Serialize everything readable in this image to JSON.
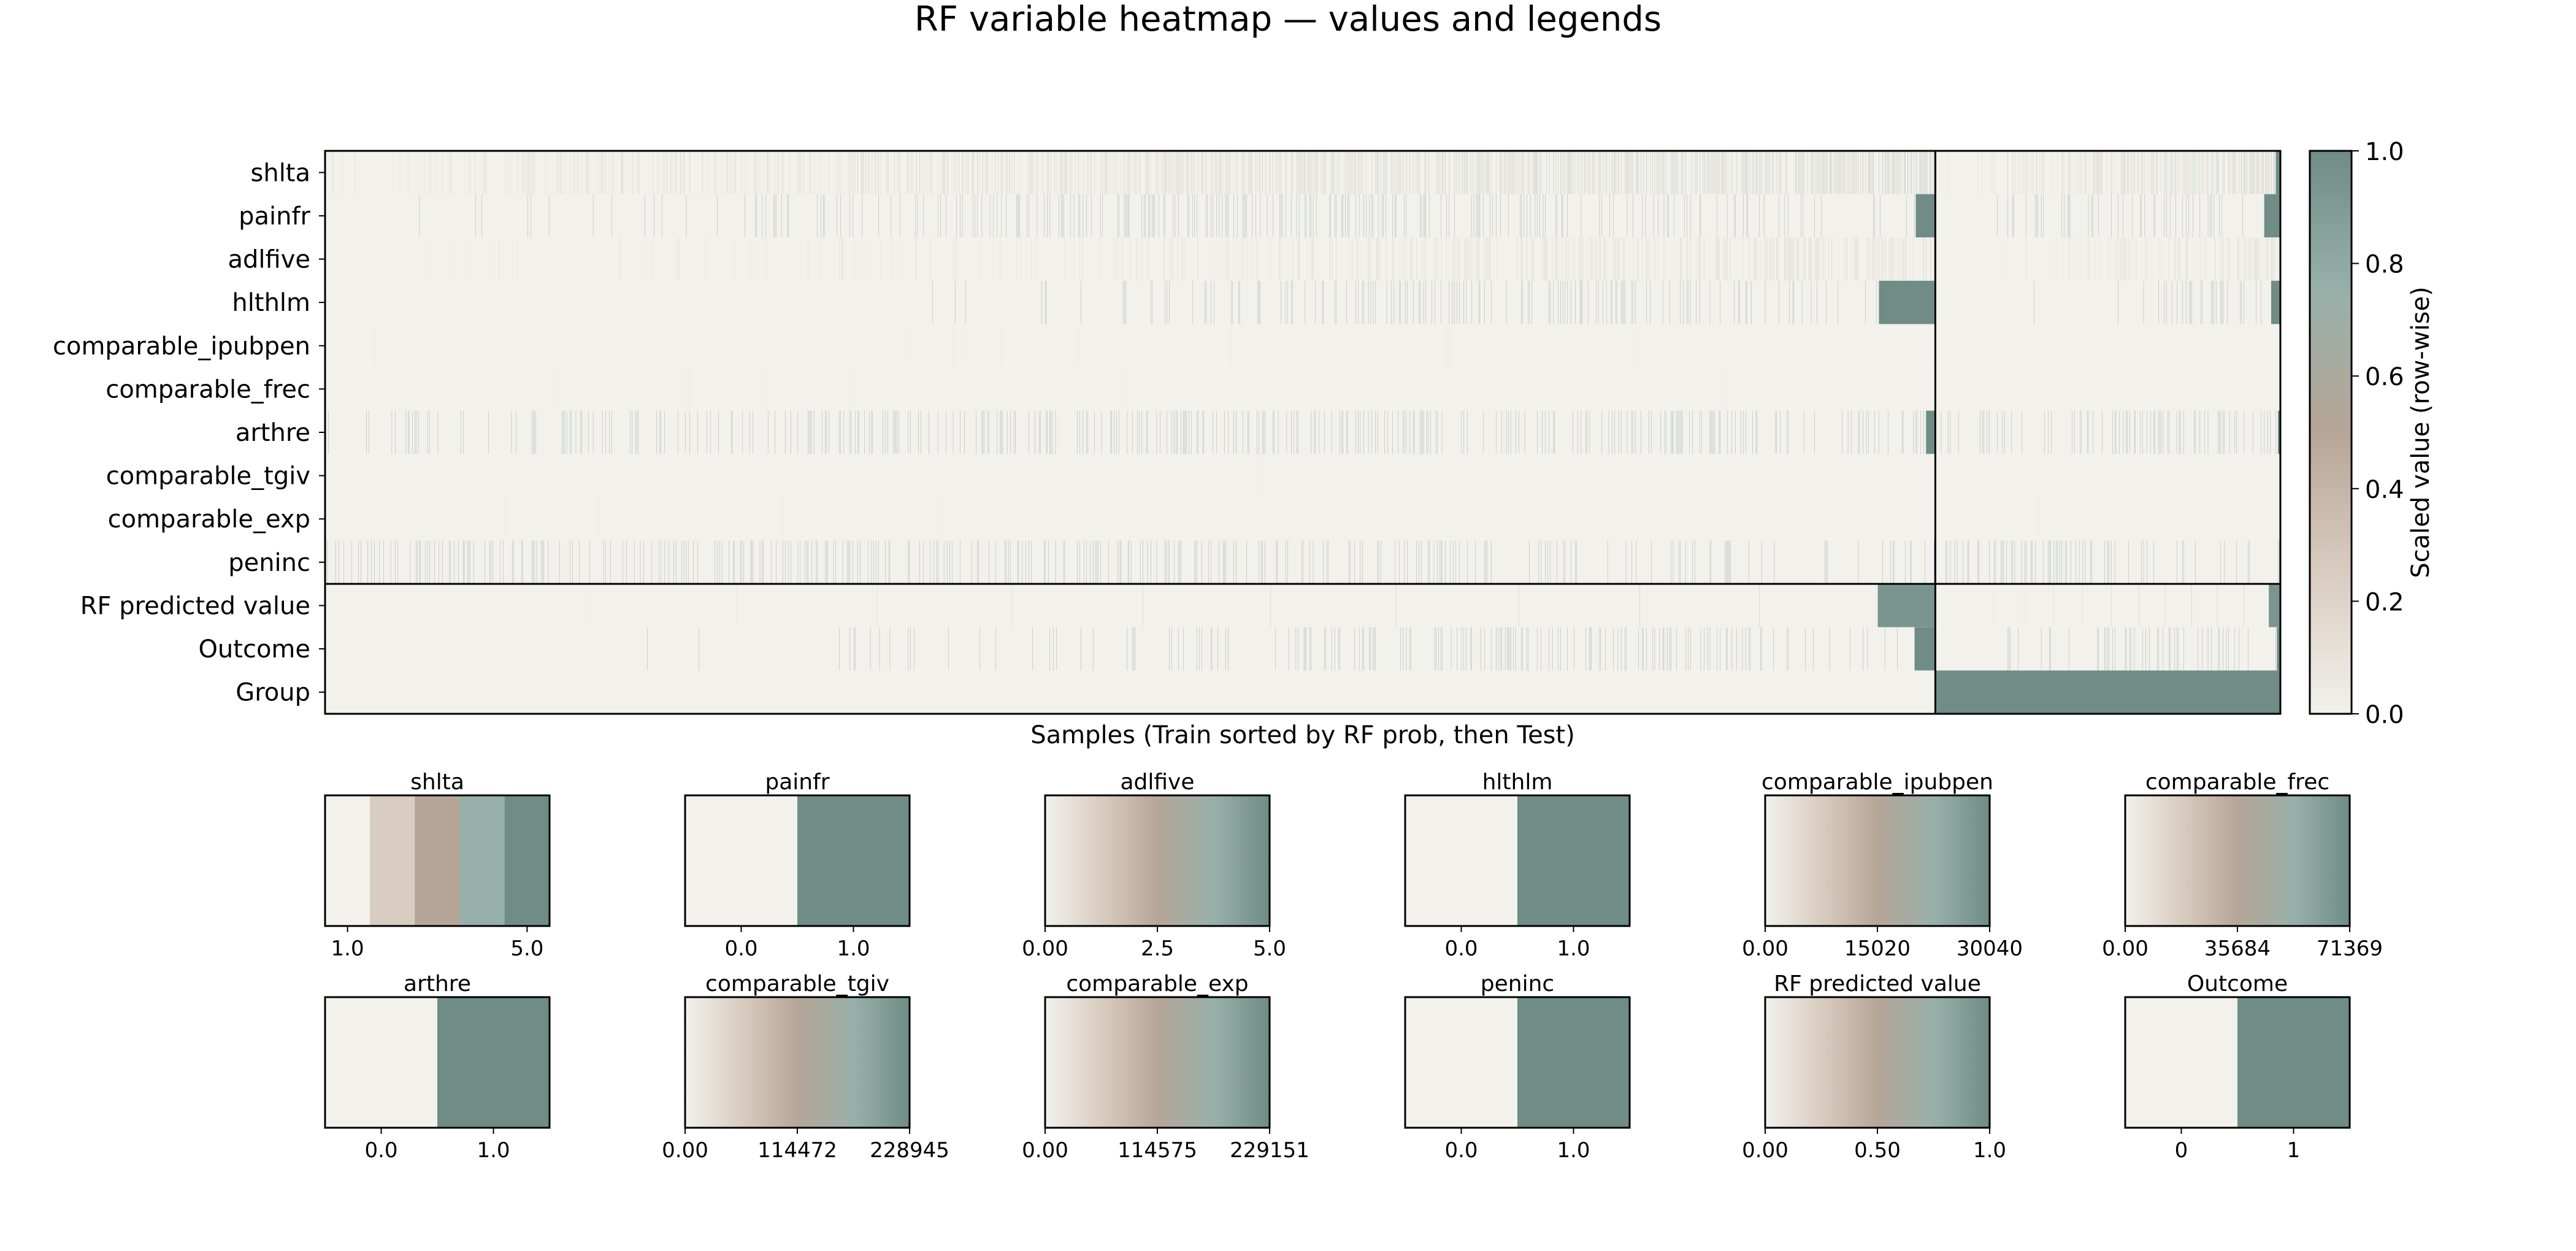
{
  "colors": {
    "colormap": [
      "#f2f1ec",
      "#d9ccc0",
      "#b7a697",
      "#98b0aa",
      "#708c86"
    ],
    "background": "#ffffff",
    "text": "#000000",
    "frame": "#000000"
  },
  "chart_data": {
    "type": "heatmap",
    "title": "RF variable heatmap — values and legends",
    "xlabel": "Samples (Train sorted by RF prob, then Test)",
    "rows": [
      "shlta",
      "painfr",
      "adlfive",
      "hlthlm",
      "comparable_ipubpen",
      "comparable_frec",
      "arthre",
      "comparable_tgiv",
      "comparable_exp",
      "peninc",
      "RF predicted value",
      "Outcome",
      "Group"
    ],
    "n_train": 1400,
    "n_test": 300,
    "colorbar": {
      "label": "Scaled value (row-wise)",
      "range": [
        0.0,
        1.0
      ],
      "ticks": [
        "0.0",
        "0.2",
        "0.4",
        "0.6",
        "0.8",
        "1.0"
      ]
    },
    "legends": [
      {
        "title": "shlta",
        "kind": "discrete",
        "levels": 5,
        "range": [
          0.5,
          5.5
        ],
        "ticks": [
          {
            "v": 1,
            "t": "1.0"
          },
          {
            "v": 5,
            "t": "5.0"
          }
        ]
      },
      {
        "title": "painfr",
        "kind": "discrete",
        "levels": 2,
        "range": [
          -0.5,
          1.5
        ],
        "ticks": [
          {
            "v": 0,
            "t": "0.0"
          },
          {
            "v": 1,
            "t": "1.0"
          }
        ]
      },
      {
        "title": "adlfive",
        "kind": "continuous",
        "range": [
          0,
          5
        ],
        "ticks": [
          {
            "v": 0,
            "t": "0.00"
          },
          {
            "v": 2.5,
            "t": "2.5"
          },
          {
            "v": 5,
            "t": "5.0"
          }
        ]
      },
      {
        "title": "hlthlm",
        "kind": "discrete",
        "levels": 2,
        "range": [
          -0.5,
          1.5
        ],
        "ticks": [
          {
            "v": 0,
            "t": "0.0"
          },
          {
            "v": 1,
            "t": "1.0"
          }
        ]
      },
      {
        "title": "comparable_ipubpen",
        "kind": "continuous",
        "range": [
          0,
          30040
        ],
        "ticks": [
          {
            "v": 0,
            "t": "0.00"
          },
          {
            "v": 15020,
            "t": "15020"
          },
          {
            "v": 30040,
            "t": "30040"
          }
        ]
      },
      {
        "title": "comparable_frec",
        "kind": "continuous",
        "range": [
          0,
          71369
        ],
        "ticks": [
          {
            "v": 0,
            "t": "0.00"
          },
          {
            "v": 35684,
            "t": "35684"
          },
          {
            "v": 71369,
            "t": "71369"
          }
        ]
      },
      {
        "title": "arthre",
        "kind": "discrete",
        "levels": 2,
        "range": [
          -0.5,
          1.5
        ],
        "ticks": [
          {
            "v": 0,
            "t": "0.0"
          },
          {
            "v": 1,
            "t": "1.0"
          }
        ]
      },
      {
        "title": "comparable_tgiv",
        "kind": "continuous",
        "range": [
          0,
          228945
        ],
        "ticks": [
          {
            "v": 0,
            "t": "0.00"
          },
          {
            "v": 114472,
            "t": "114472"
          },
          {
            "v": 228945,
            "t": "228945"
          }
        ]
      },
      {
        "title": "comparable_exp",
        "kind": "continuous",
        "range": [
          0,
          229151
        ],
        "ticks": [
          {
            "v": 0,
            "t": "0.00"
          },
          {
            "v": 114575,
            "t": "114575"
          },
          {
            "v": 229151,
            "t": "229151"
          }
        ]
      },
      {
        "title": "peninc",
        "kind": "discrete",
        "levels": 2,
        "range": [
          -0.5,
          1.5
        ],
        "ticks": [
          {
            "v": 0,
            "t": "0.0"
          },
          {
            "v": 1,
            "t": "1.0"
          }
        ]
      },
      {
        "title": "RF predicted value",
        "kind": "continuous",
        "range": [
          0,
          1
        ],
        "ticks": [
          {
            "v": 0,
            "t": "0.00"
          },
          {
            "v": 0.5,
            "t": "0.50"
          },
          {
            "v": 1,
            "t": "1.0"
          }
        ]
      },
      {
        "title": "Outcome",
        "kind": "discrete",
        "levels": 2,
        "range": [
          -0.5,
          1.5
        ],
        "ticks": [
          {
            "v": 0,
            "t": "0"
          },
          {
            "v": 1,
            "t": "1"
          }
        ]
      }
    ]
  }
}
